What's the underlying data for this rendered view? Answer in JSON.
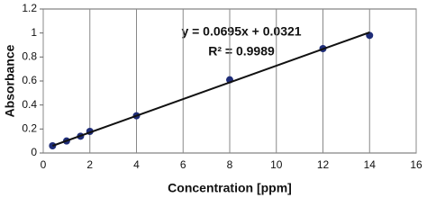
{
  "chart_data": {
    "type": "scatter",
    "x_label": "Concentration [ppm]",
    "y_label": "Absorbance",
    "annotations": [
      "y = 0.0695x + 0.0321",
      "R² = 0.9989"
    ],
    "series": [
      {
        "color": "#1f2d78",
        "x": [
          0.4,
          1,
          1.6,
          2,
          4,
          8,
          12,
          14
        ],
        "values": [
          0.06,
          0.1,
          0.14,
          0.18,
          0.31,
          0.61,
          0.87,
          0.98
        ]
      }
    ],
    "trendline": {
      "color": "#111111",
      "x": [
        0.4,
        14
      ],
      "values": [
        0.06,
        1.005
      ]
    },
    "xlim": [
      0,
      16
    ],
    "xticks": [
      0,
      2,
      4,
      6,
      8,
      10,
      12,
      14,
      16
    ],
    "ylim": [
      0,
      1.2
    ],
    "yticks": [
      0,
      0.2,
      0.4,
      0.6,
      0.8,
      1,
      1.2
    ],
    "grid": "x"
  }
}
